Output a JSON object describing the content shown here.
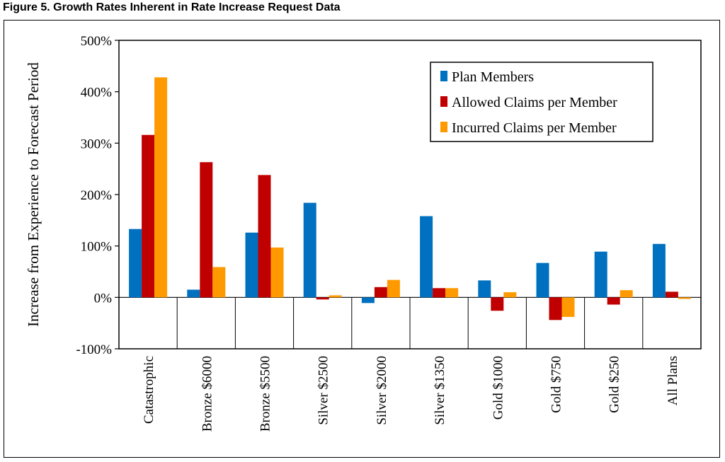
{
  "figure_title": "Figure 5.  Growth Rates Inherent in Rate Increase Request Data",
  "chart_data": {
    "type": "bar",
    "title": "",
    "ylabel": "Increase from Experience to Forecast Period",
    "xlabel": "",
    "ylim": [
      -100,
      500
    ],
    "yticks": [
      -100,
      0,
      100,
      200,
      300,
      400,
      500
    ],
    "ytick_labels": [
      "-100%",
      "0%",
      "100%",
      "200%",
      "300%",
      "400%",
      "500%"
    ],
    "categories": [
      "Catastrophic",
      "Bronze $6000",
      "Bronze $5500",
      "Silver $2500",
      "Silver $2000",
      "Silver $1350",
      "Gold $1000",
      "Gold $750",
      "Gold $250",
      "All Plans"
    ],
    "series": [
      {
        "name": "Plan Members",
        "color": "#0070C0",
        "values": [
          133,
          15,
          126,
          184,
          -11,
          158,
          33,
          67,
          89,
          104
        ]
      },
      {
        "name": "Allowed Claims per Member",
        "color": "#C00000",
        "values": [
          316,
          263,
          238,
          -4,
          20,
          18,
          -26,
          -44,
          -14,
          11
        ]
      },
      {
        "name": "Incurred Claims per Member",
        "color": "#FF9900",
        "values": [
          428,
          59,
          97,
          4,
          34,
          18,
          10,
          -38,
          14,
          -3
        ]
      }
    ],
    "grid": false,
    "legend": "top-right"
  }
}
